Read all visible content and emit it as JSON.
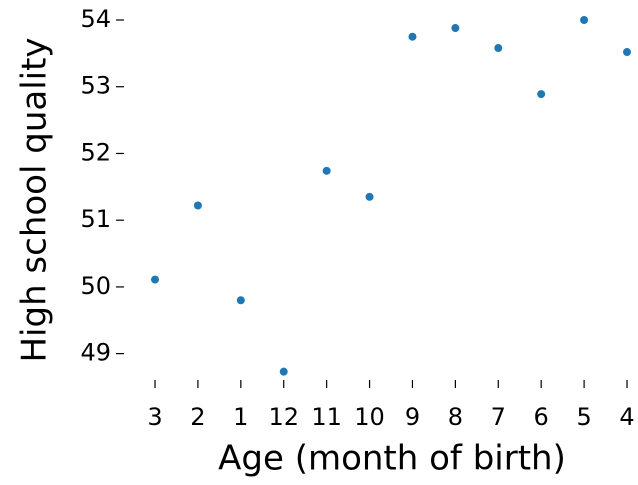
{
  "chart_data": {
    "type": "scatter",
    "x_label": "Age (month of birth)",
    "y_label": "High school quality",
    "categories": [
      "3",
      "2",
      "1",
      "12",
      "11",
      "10",
      "9",
      "8",
      "7",
      "6",
      "5",
      "4"
    ],
    "values": [
      50.11,
      51.22,
      49.8,
      48.73,
      51.74,
      51.35,
      53.75,
      53.88,
      53.58,
      52.89,
      54.0,
      53.52
    ],
    "color": "#1f77b4",
    "ylim": [
      48.65,
      54.15
    ],
    "yticks": [
      49,
      50,
      51,
      52,
      53,
      54
    ]
  }
}
